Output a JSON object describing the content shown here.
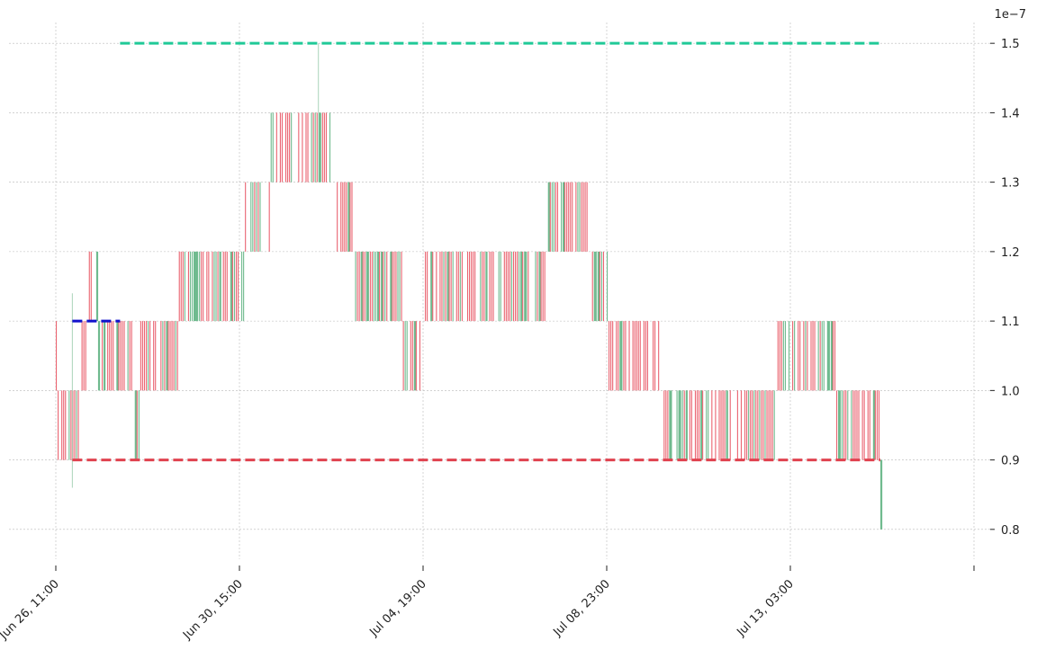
{
  "chart_data": {
    "type": "candlestick",
    "title": "",
    "xlabel": "",
    "ylabel": "",
    "y_scale_label": "1e−7",
    "y_multiplier": 1e-07,
    "ylim": [
      0.77,
      1.53
    ],
    "yticks": [
      0.8,
      0.9,
      1.0,
      1.1,
      1.2,
      1.3,
      1.4,
      1.5
    ],
    "ytick_labels": [
      "0.8",
      "0.9",
      "1.0",
      "1.1",
      "1.2",
      "1.3",
      "1.4",
      "1.5"
    ],
    "x_start": "2026-06-26T11:00",
    "x_end": "2026-07-15T05:00",
    "xticks": [
      "2026-06-26T11:00",
      "2026-06-30T15:00",
      "2026-07-04T19:00",
      "2026-07-08T23:00",
      "2026-07-13T03:00",
      "2026-07-17T07:00"
    ],
    "xtick_labels": [
      "Jun 26, 11:00",
      "Jun 30, 15:00",
      "Jul 04, 19:00",
      "Jul 08, 23:00",
      "Jul 13, 03:00",
      ""
    ],
    "grid": true,
    "candle_colors": {
      "up": "#6fba8e",
      "down": "#ea6471"
    },
    "ohlc_segments": [
      {
        "from": "2026-06-26T11:00",
        "to": "2026-06-26T12:00",
        "low": 1.0,
        "high": 1.1
      },
      {
        "from": "2026-06-26T12:00",
        "to": "2026-06-27T00:00",
        "low": 0.9,
        "high": 1.0
      },
      {
        "from": "2026-06-27T00:00",
        "to": "2026-06-27T05:00",
        "low": 1.0,
        "high": 1.1
      },
      {
        "from": "2026-06-27T05:00",
        "to": "2026-06-27T10:00",
        "low": 1.1,
        "high": 1.2
      },
      {
        "from": "2026-06-27T10:00",
        "to": "2026-06-28T06:00",
        "low": 1.0,
        "high": 1.1
      },
      {
        "from": "2026-06-28T06:00",
        "to": "2026-06-28T09:00",
        "low": 0.9,
        "high": 1.0
      },
      {
        "from": "2026-06-28T09:00",
        "to": "2026-06-29T06:00",
        "low": 1.0,
        "high": 1.1
      },
      {
        "from": "2026-06-29T06:00",
        "to": "2026-06-30T18:00",
        "low": 1.1,
        "high": 1.2
      },
      {
        "from": "2026-06-30T18:00",
        "to": "2026-07-01T08:00",
        "low": 1.2,
        "high": 1.3
      },
      {
        "from": "2026-07-01T08:00",
        "to": "2026-07-02T18:00",
        "low": 1.3,
        "high": 1.4
      },
      {
        "from": "2026-07-02T18:00",
        "to": "2026-07-03T06:00",
        "low": 1.2,
        "high": 1.3
      },
      {
        "from": "2026-07-03T06:00",
        "to": "2026-07-04T08:00",
        "low": 1.1,
        "high": 1.2
      },
      {
        "from": "2026-07-04T08:00",
        "to": "2026-07-04T19:00",
        "low": 1.0,
        "high": 1.1
      },
      {
        "from": "2026-07-04T19:00",
        "to": "2026-07-07T14:00",
        "low": 1.1,
        "high": 1.2
      },
      {
        "from": "2026-07-07T14:00",
        "to": "2026-07-08T14:00",
        "low": 1.2,
        "high": 1.3
      },
      {
        "from": "2026-07-08T14:00",
        "to": "2026-07-09T00:00",
        "low": 1.1,
        "high": 1.2
      },
      {
        "from": "2026-07-09T00:00",
        "to": "2026-07-10T04:00",
        "low": 1.0,
        "high": 1.1
      },
      {
        "from": "2026-07-10T04:00",
        "to": "2026-07-12T20:00",
        "low": 0.9,
        "high": 1.0
      },
      {
        "from": "2026-07-12T20:00",
        "to": "2026-07-14T04:00",
        "low": 1.0,
        "high": 1.1
      },
      {
        "from": "2026-07-14T04:00",
        "to": "2026-07-15T04:00",
        "low": 0.9,
        "high": 1.0
      },
      {
        "from": "2026-07-15T04:00",
        "to": "2026-07-15T05:00",
        "low": 0.8,
        "high": 0.9
      }
    ],
    "wicks": [
      {
        "time": "2026-06-26T20:00",
        "low": 0.86,
        "high": 1.14
      },
      {
        "time": "2026-07-02T10:00",
        "low": 1.4,
        "high": 1.5
      }
    ],
    "lines": [
      {
        "value": 1.5,
        "from": "2026-06-27T22:00",
        "to": "2026-07-15T04:00",
        "color": "#20c997",
        "style": "dashed"
      },
      {
        "value": 1.1,
        "from": "2026-06-26T20:00",
        "to": "2026-06-27T22:00",
        "color": "#1111cc",
        "style": "dashed"
      },
      {
        "value": 0.9,
        "from": "2026-06-26T20:00",
        "to": "2026-07-15T04:00",
        "color": "#e0424f",
        "style": "dashed"
      }
    ]
  }
}
